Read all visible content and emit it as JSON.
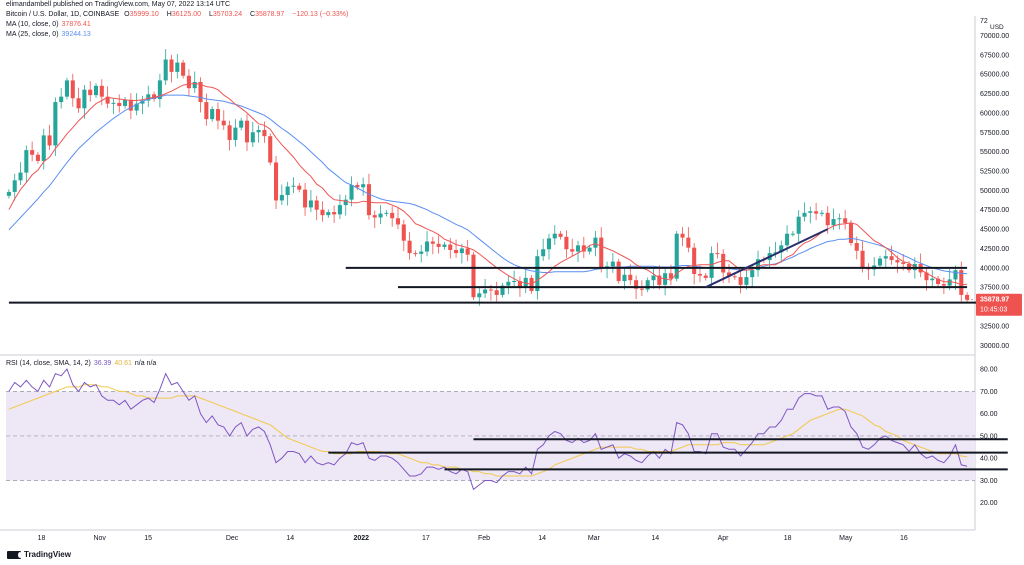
{
  "header": {
    "published": "elimandambell published on TradingView.com, May 07, 2022 13:14 UTC",
    "symbol_title": "Bitcoin / U.S. Dollar, 1D, COINBASE",
    "ohlc": {
      "open_label": "O",
      "open": "35999.10",
      "high_label": "H",
      "high": "36125.00",
      "low_label": "L",
      "low": "35703.24",
      "close_label": "C",
      "close": "35878.97",
      "change": "−120.13 (−0.33%)"
    },
    "ma10_label": "MA (10, close, 0)",
    "ma10_value": "37876.41",
    "ma25_label": "MA (25, close, 0)",
    "ma25_value": "39244.13",
    "rsi_label": "RSI (14, close, SMA, 14, 2)",
    "rsi_value": "36.39",
    "rsi_sma_value": "40.61",
    "rsi_na": "n/a n/a"
  },
  "price_badge": {
    "price": "35878.97",
    "countdown": "10:45:03"
  },
  "brand": "TradingView",
  "colors": {
    "up": "#26a69a",
    "down": "#ef5350",
    "ma10": "#f05555",
    "ma25": "#5b8ff2",
    "rsi": "#7e57c2",
    "rsi_sma": "#f2c94c",
    "rsi_band": "#ede7f6",
    "levels": "#131722"
  },
  "chart_data": [
    {
      "type": "candlestick",
      "title": "Bitcoin / U.S. Dollar, 1D, COINBASE",
      "currency": "USD",
      "ylim": [
        29000,
        72000
      ],
      "yticks": [
        "30000.00",
        "32500.00",
        "35000.00",
        "37500.00",
        "40000.00",
        "42500.00",
        "45000.00",
        "47500.00",
        "50000.00",
        "52500.00",
        "55000.00",
        "57500.00",
        "60000.00",
        "62500.00",
        "65000.00",
        "67500.00",
        "70000.00",
        "72"
      ],
      "xticks": [
        "18",
        "Nov",
        "15",
        "Dec",
        "14",
        "2022",
        "17",
        "Feb",
        "14",
        "Mar",
        "14",
        "Apr",
        "18",
        "May",
        "16"
      ],
      "close": [
        49800,
        51300,
        52300,
        55200,
        54600,
        53800,
        57100,
        55800,
        61400,
        62100,
        64200,
        61900,
        60600,
        63000,
        62300,
        63500,
        62100,
        61200,
        61300,
        60900,
        61700,
        60300,
        61200,
        61600,
        62400,
        61800,
        64200,
        66900,
        65300,
        66500,
        64800,
        63200,
        64000,
        61400,
        59200,
        60500,
        59000,
        58400,
        56500,
        58100,
        59000,
        56200,
        57500,
        57800,
        57000,
        53600,
        48700,
        49400,
        50500,
        50600,
        50100,
        47800,
        48700,
        47500,
        46800,
        47200,
        46900,
        48100,
        48800,
        50700,
        50400,
        50800,
        46800,
        46500,
        47000,
        47100,
        46400,
        45600,
        43500,
        41900,
        41800,
        42100,
        43400,
        43100,
        42700,
        43000,
        42300,
        41900,
        42500,
        41700,
        36200,
        36700,
        37200,
        37100,
        36500,
        37700,
        38200,
        38300,
        37600,
        38700,
        37000,
        41500,
        42400,
        43800,
        44400,
        44000,
        42400,
        42100,
        42900,
        42100,
        42600,
        43900,
        40000,
        40200,
        40800,
        38300,
        39100,
        38400,
        37300,
        37200,
        38400,
        39000,
        37800,
        39300,
        38600,
        44400,
        43900,
        42600,
        39200,
        39000,
        38700,
        41900,
        41800,
        39400,
        38900,
        38800,
        37800,
        38800,
        39700,
        41100,
        41000,
        41900,
        42000,
        42900,
        44400,
        44400,
        46600,
        47100,
        47300,
        47000,
        47100,
        45500,
        46300,
        46400,
        45800,
        43200,
        42200,
        40000,
        39800,
        40300,
        41200,
        41500,
        41000,
        40700,
        40500,
        39700,
        40500,
        39400,
        38400,
        38600,
        37900,
        37700,
        38500,
        39700,
        36500,
        35879
      ],
      "ma10": [
        47500,
        48900,
        50100,
        51000,
        52000,
        52600,
        53700,
        54300,
        55400,
        56300,
        57300,
        58100,
        59000,
        59700,
        60500,
        61200,
        61600,
        62000,
        61900,
        61800,
        61700,
        61600,
        61600,
        61700,
        61900,
        62000,
        62200,
        62500,
        62800,
        63200,
        63600,
        63700,
        63800,
        63700,
        63400,
        63300,
        63000,
        62300,
        61800,
        61100,
        60600,
        60000,
        59300,
        58600,
        58400,
        57900,
        56800,
        55900,
        55100,
        54300,
        53300,
        52500,
        51800,
        50800,
        50300,
        49400,
        48800,
        48700,
        48600,
        48400,
        48400,
        48600,
        48500,
        48400,
        48400,
        48400,
        48100,
        47800,
        47300,
        46600,
        45700,
        45400,
        45000,
        44700,
        44300,
        43700,
        43400,
        43000,
        42800,
        42600,
        42300,
        41800,
        41200,
        40600,
        40000,
        39500,
        39000,
        38600,
        38200,
        38000,
        37900,
        38400,
        38900,
        39500,
        40200,
        40700,
        41100,
        41500,
        41900,
        42300,
        42900,
        43100,
        42800,
        42500,
        42200,
        41800,
        41400,
        41000,
        40400,
        40000,
        39700,
        39200,
        38700,
        38600,
        38400,
        39300,
        39800,
        40200,
        40300,
        40400,
        40400,
        40400,
        40700,
        40900,
        40900,
        40300,
        39700,
        39700,
        39800,
        40200,
        40400,
        40400,
        40400,
        40800,
        41400,
        41700,
        42600,
        43200,
        43500,
        44000,
        44600,
        45000,
        45400,
        45600,
        45700,
        45800,
        45600,
        44900,
        44200,
        43500,
        43100,
        42600,
        42000,
        41300,
        40800,
        40600,
        40100,
        39800,
        39300,
        38900,
        38500,
        38200,
        38200,
        38100,
        37800,
        37876
      ],
      "ma25": [
        44900,
        45700,
        46500,
        47300,
        48100,
        48900,
        49800,
        50600,
        51600,
        52600,
        53600,
        54500,
        55400,
        56100,
        56800,
        57500,
        58100,
        58700,
        59300,
        59800,
        60300,
        60700,
        61100,
        61500,
        61800,
        61900,
        62100,
        62300,
        62300,
        62300,
        62300,
        62200,
        62100,
        62000,
        61800,
        61700,
        61600,
        61500,
        61300,
        61100,
        60900,
        60600,
        60300,
        60000,
        59700,
        59200,
        58600,
        58000,
        57500,
        56900,
        56300,
        55700,
        55000,
        54300,
        53600,
        52800,
        52200,
        51600,
        51000,
        50700,
        50300,
        49900,
        49500,
        49200,
        48900,
        48700,
        48600,
        48500,
        48400,
        48300,
        48100,
        47800,
        47500,
        47100,
        46800,
        46400,
        46000,
        45600,
        45300,
        44900,
        44300,
        43700,
        43100,
        42500,
        41900,
        41300,
        40800,
        40400,
        40100,
        39800,
        39600,
        39500,
        39400,
        39400,
        39500,
        39500,
        39500,
        39500,
        39500,
        39500,
        39600,
        39800,
        39900,
        40000,
        40100,
        40100,
        40100,
        40200,
        40200,
        40200,
        40200,
        40200,
        40100,
        40100,
        40100,
        40200,
        40300,
        40300,
        40200,
        40100,
        40000,
        40000,
        40000,
        40000,
        39900,
        39800,
        39700,
        39700,
        39800,
        40000,
        40200,
        40400,
        40500,
        40800,
        41100,
        41400,
        41800,
        42100,
        42500,
        42800,
        43100,
        43400,
        43500,
        43700,
        43700,
        43800,
        43700,
        43500,
        43300,
        43100,
        42900,
        42600,
        42300,
        42000,
        41600,
        41300,
        40900,
        40600,
        40300,
        40000,
        39800,
        39600,
        39500,
        39400,
        39300,
        39244
      ],
      "levels": [
        {
          "price": 40000,
          "from": 58,
          "to": 165
        },
        {
          "price": 37500,
          "from": 67,
          "to": 165
        },
        {
          "price": 35500,
          "from": 0,
          "to": 172
        }
      ],
      "trendline": {
        "from": [
          120,
          37500
        ],
        "to": [
          141,
          45000
        ]
      },
      "last_price": 35878.97
    },
    {
      "type": "line",
      "title": "RSI (14, close, SMA, 14, 2)",
      "ylim": [
        10,
        85
      ],
      "yticks": [
        "20.00",
        "30.00",
        "40.00",
        "50.00",
        "60.00",
        "70.00",
        "80.00"
      ],
      "band": [
        30,
        70
      ],
      "midline": 50,
      "rsi": [
        70,
        74,
        72,
        75,
        72,
        70,
        75,
        72,
        78,
        77,
        80,
        73,
        70,
        74,
        72,
        73,
        68,
        66,
        66,
        64,
        66,
        62,
        64,
        66,
        67,
        65,
        71,
        78,
        73,
        74,
        70,
        66,
        68,
        60,
        56,
        59,
        55,
        54,
        50,
        54,
        56,
        50,
        53,
        54,
        52,
        46,
        38,
        40,
        43,
        43,
        42,
        38,
        41,
        38,
        37,
        38,
        37,
        40,
        42,
        47,
        46,
        47,
        40,
        39,
        41,
        41,
        40,
        38,
        35,
        32,
        32,
        33,
        36,
        36,
        35,
        36,
        34,
        33,
        35,
        34,
        26,
        28,
        30,
        30,
        29,
        32,
        34,
        34,
        33,
        36,
        33,
        44,
        46,
        50,
        52,
        51,
        48,
        47,
        49,
        47,
        48,
        51,
        44,
        45,
        46,
        40,
        42,
        41,
        39,
        38,
        41,
        43,
        40,
        44,
        42,
        56,
        55,
        51,
        43,
        43,
        42,
        51,
        51,
        45,
        44,
        44,
        41,
        44,
        47,
        51,
        51,
        54,
        54,
        57,
        62,
        62,
        67,
        69,
        69,
        68,
        68,
        62,
        63,
        63,
        61,
        54,
        51,
        45,
        44,
        46,
        49,
        50,
        48,
        47,
        46,
        43,
        46,
        42,
        40,
        41,
        39,
        38,
        41,
        46,
        37,
        36.39
      ],
      "rsi_sma": [
        62,
        63,
        64,
        65,
        66,
        67,
        68,
        69,
        70,
        71,
        72,
        72,
        72,
        73,
        73,
        73,
        72,
        72,
        71,
        70,
        70,
        69,
        68,
        68,
        67,
        67,
        67,
        67,
        67,
        68,
        68,
        68,
        68,
        67,
        66,
        65,
        64,
        63,
        62,
        61,
        60,
        59,
        58,
        57,
        56,
        55,
        53,
        51,
        49,
        48,
        47,
        46,
        45,
        44,
        43,
        43,
        42,
        42,
        42,
        42,
        43,
        43,
        43,
        43,
        43,
        42,
        42,
        42,
        41,
        40,
        39,
        38,
        38,
        37,
        37,
        36,
        36,
        36,
        35,
        35,
        34,
        34,
        33,
        33,
        32,
        32,
        32,
        32,
        32,
        32,
        32,
        33,
        34,
        35,
        37,
        38,
        39,
        40,
        41,
        42,
        43,
        44,
        45,
        45,
        45,
        45,
        45,
        45,
        44,
        44,
        43,
        43,
        43,
        43,
        43,
        44,
        45,
        46,
        46,
        46,
        46,
        46,
        46,
        47,
        47,
        47,
        46,
        46,
        46,
        46,
        46,
        47,
        48,
        49,
        50,
        51,
        53,
        55,
        57,
        58,
        59,
        60,
        61,
        62,
        62,
        61,
        60,
        59,
        57,
        55,
        54,
        52,
        51,
        50,
        48,
        47,
        46,
        45,
        44,
        43,
        42,
        42,
        42,
        42,
        41,
        40.61
      ],
      "levels": [
        {
          "value": 48.5,
          "from": 80,
          "to": 175
        },
        {
          "value": 42.5,
          "from": 55,
          "to": 175
        },
        {
          "value": 35,
          "from": 75,
          "to": 175
        }
      ]
    }
  ]
}
